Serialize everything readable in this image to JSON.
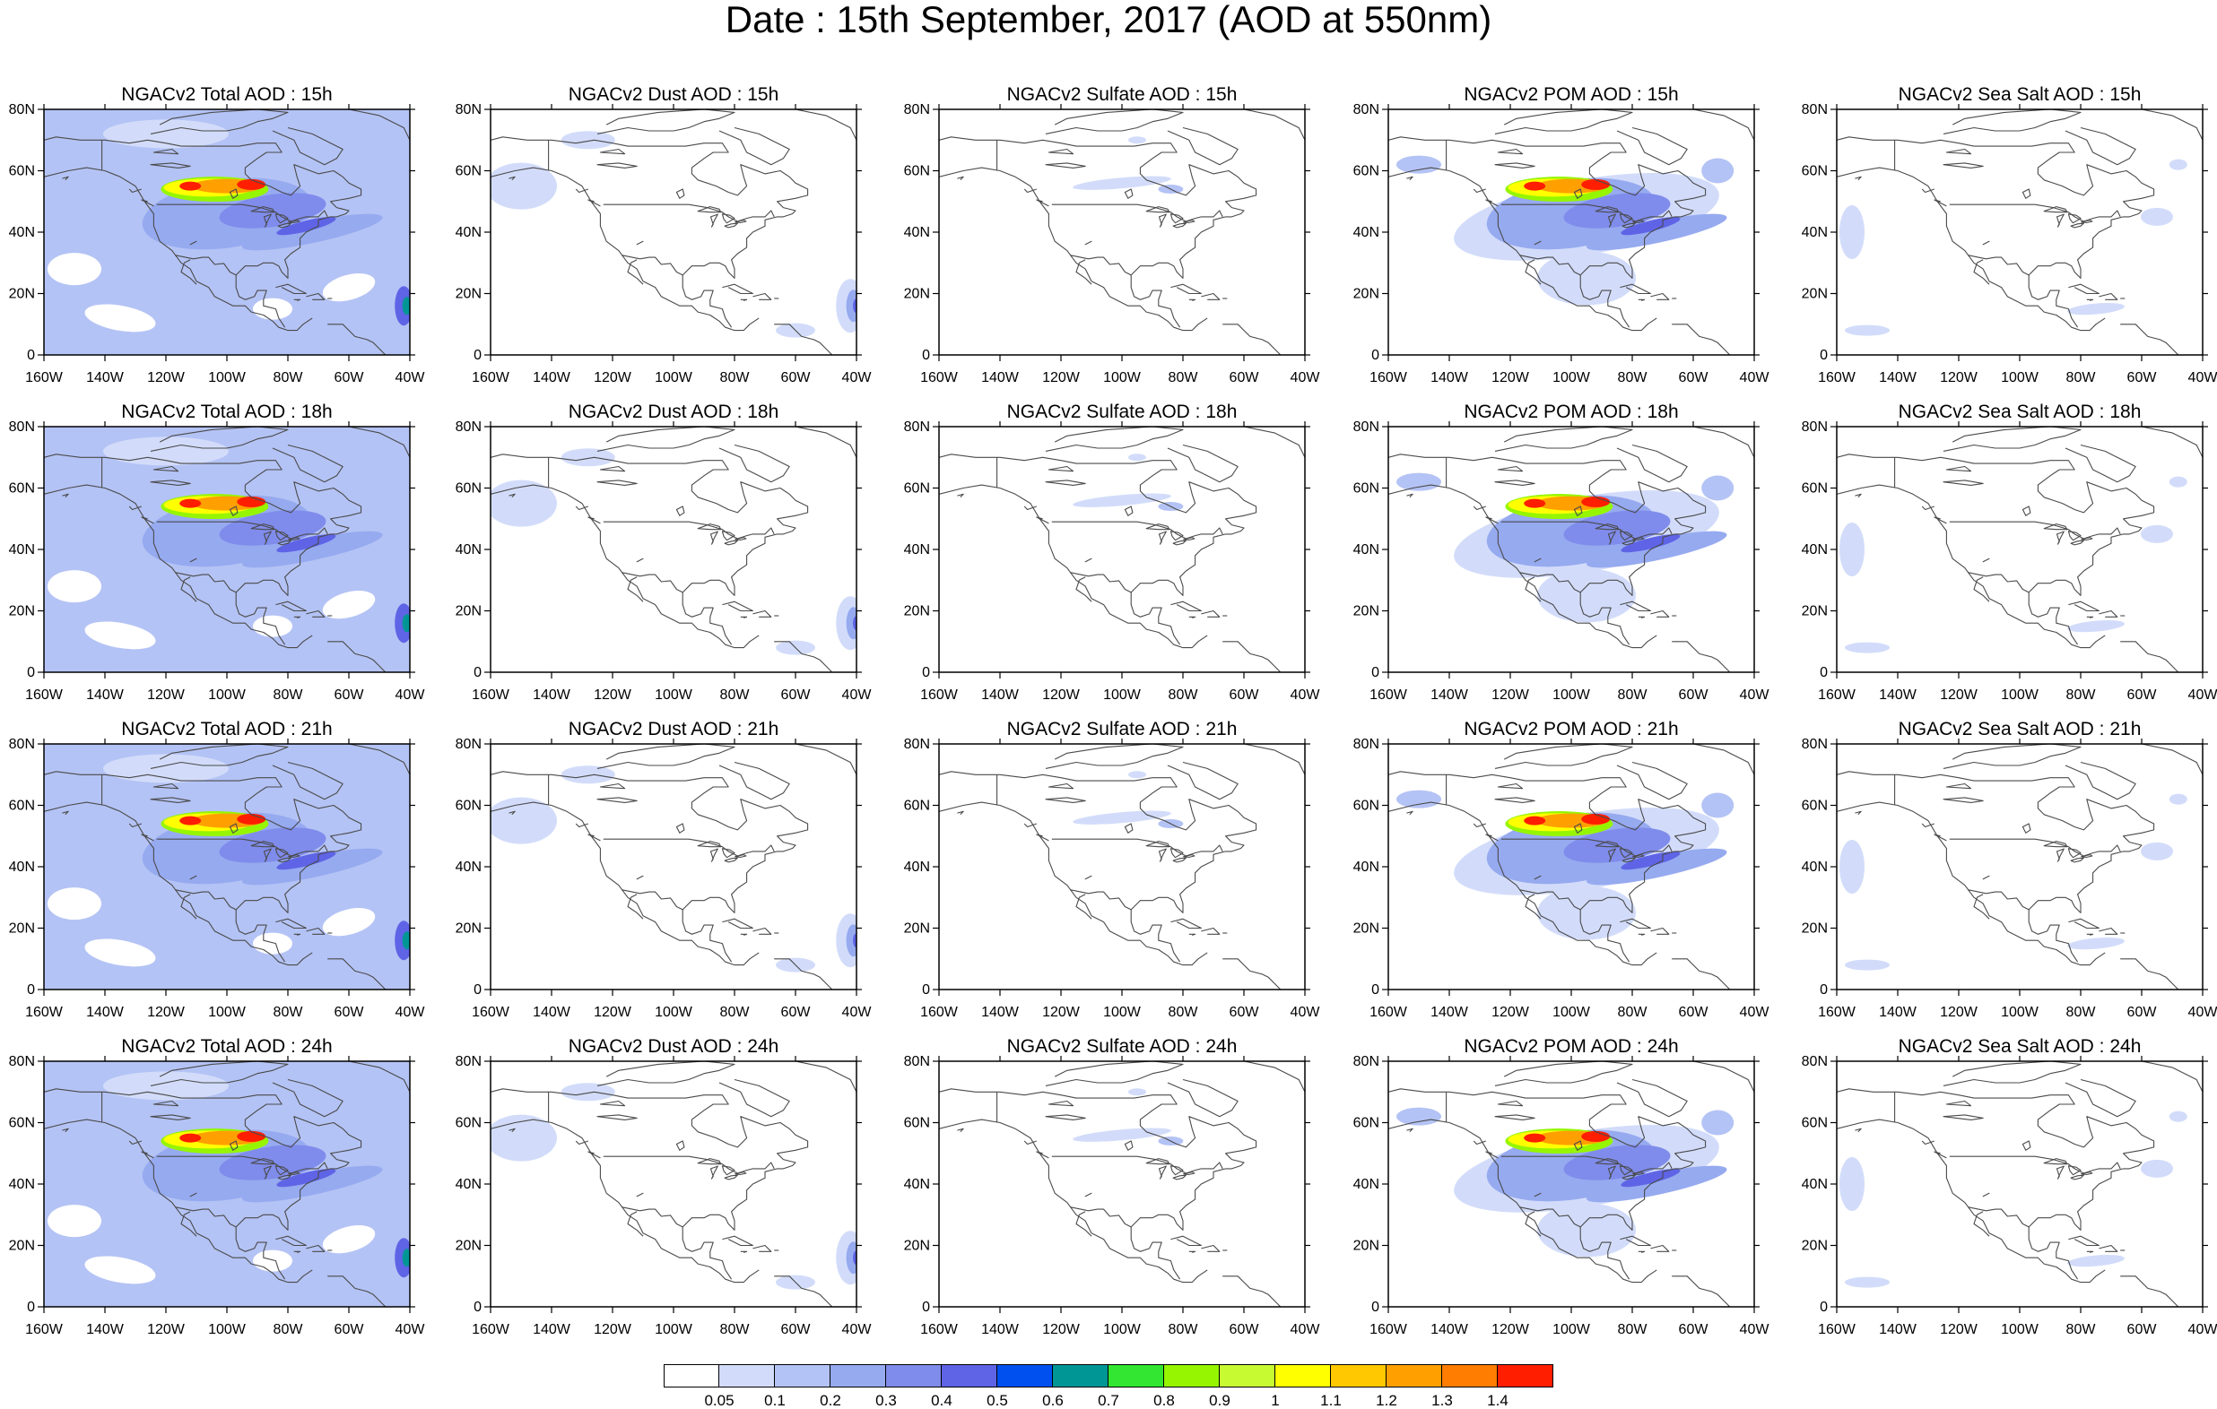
{
  "figure": {
    "title": "Date : 15th September, 2017 (AOD at 550nm)"
  },
  "map_axes": {
    "lon_labels": [
      "160W",
      "140W",
      "120W",
      "100W",
      "80W",
      "60W",
      "40W"
    ],
    "lat_labels": [
      "0",
      "20N",
      "40N",
      "60N",
      "80N"
    ],
    "lon_range": [
      -160,
      -40
    ],
    "lat_range": [
      0,
      80
    ]
  },
  "panels": [
    [
      {
        "title": "NGACv2 Total AOD : 15h",
        "field": "total"
      },
      {
        "title": "NGACv2 Dust AOD : 15h",
        "field": "dust"
      },
      {
        "title": "NGACv2 Sulfate AOD : 15h",
        "field": "sulfate"
      },
      {
        "title": "NGACv2 POM AOD : 15h",
        "field": "pom"
      },
      {
        "title": "NGACv2 Sea Salt AOD : 15h",
        "field": "seasalt"
      }
    ],
    [
      {
        "title": "NGACv2 Total AOD : 18h",
        "field": "total"
      },
      {
        "title": "NGACv2 Dust AOD : 18h",
        "field": "dust"
      },
      {
        "title": "NGACv2 Sulfate AOD : 18h",
        "field": "sulfate"
      },
      {
        "title": "NGACv2 POM AOD : 18h",
        "field": "pom"
      },
      {
        "title": "NGACv2 Sea Salt AOD : 18h",
        "field": "seasalt"
      }
    ],
    [
      {
        "title": "NGACv2 Total AOD : 21h",
        "field": "total"
      },
      {
        "title": "NGACv2 Dust AOD : 21h",
        "field": "dust"
      },
      {
        "title": "NGACv2 Sulfate AOD : 21h",
        "field": "sulfate"
      },
      {
        "title": "NGACv2 POM AOD : 21h",
        "field": "pom"
      },
      {
        "title": "NGACv2 Sea Salt AOD : 21h",
        "field": "seasalt"
      }
    ],
    [
      {
        "title": "NGACv2 Total AOD : 24h",
        "field": "total"
      },
      {
        "title": "NGACv2 Dust AOD : 24h",
        "field": "dust"
      },
      {
        "title": "NGACv2 Sulfate AOD : 24h",
        "field": "sulfate"
      },
      {
        "title": "NGACv2 POM AOD : 24h",
        "field": "pom"
      },
      {
        "title": "NGACv2 Sea Salt  AOD : 24h",
        "field": "seasalt"
      }
    ]
  ],
  "colorbar": {
    "labels": [
      "0.05",
      "0.1",
      "0.2",
      "0.3",
      "0.4",
      "0.5",
      "0.6",
      "0.7",
      "0.8",
      "0.9",
      "1",
      "1.1",
      "1.2",
      "1.3",
      "1.4"
    ],
    "colors": [
      "#ffffff",
      "#d2dcfa",
      "#b4c3f5",
      "#96aaf0",
      "#7f8ceb",
      "#5f64e6",
      "#0050f0",
      "#009696",
      "#32e632",
      "#96f500",
      "#c8fa32",
      "#ffff00",
      "#ffc800",
      "#ffa000",
      "#ff7d00",
      "#ff1e00"
    ]
  }
}
